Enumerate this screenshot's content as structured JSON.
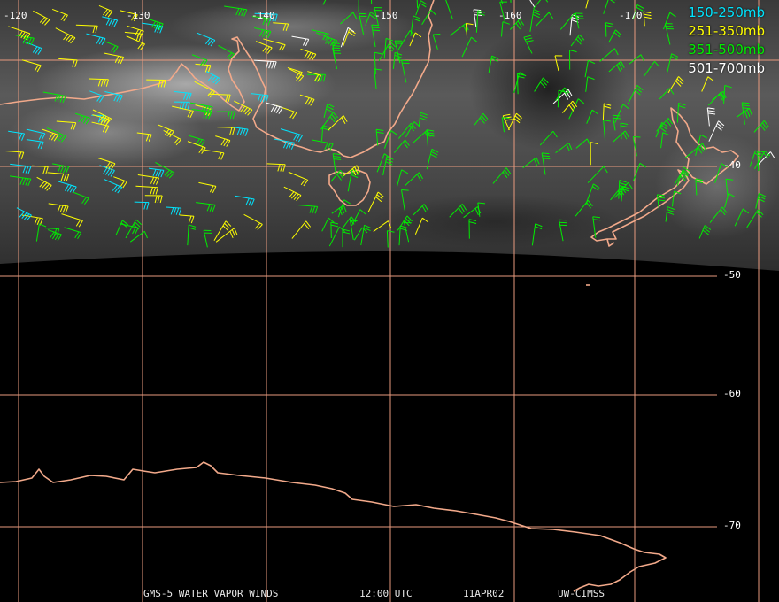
{
  "legend": [
    {
      "label": "150-250mb",
      "color": "#00e5ff"
    },
    {
      "label": "251-350mb",
      "color": "#ffff00"
    },
    {
      "label": "351-500mb",
      "color": "#00ee00"
    },
    {
      "label": "501-700mb",
      "color": "#ffffff"
    }
  ],
  "lon_labels": [
    "-120",
    "-130",
    "-140",
    "-150",
    "-160",
    "-170"
  ],
  "lat_labels": [
    "-40",
    "-50",
    "-60",
    "-70"
  ],
  "footer": {
    "product": "GMS-5 WATER VAPOR WINDS",
    "time": "12:00 UTC",
    "date": "11APR02",
    "source": "UW-CIMSS"
  },
  "colors": {
    "coastline": "#f2a98a",
    "grid": "#e89a7e",
    "background": "#000000"
  }
}
